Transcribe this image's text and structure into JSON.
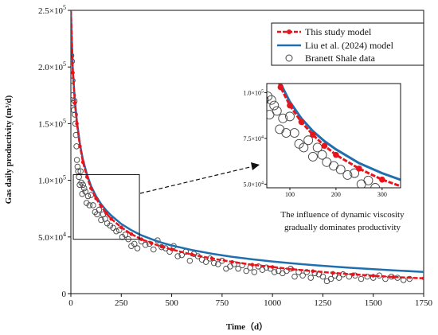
{
  "chart_data": {
    "type": "line",
    "xlabel": "Time（d）",
    "ylabel": "Gas daily productivity (m³/d)",
    "xlim": [
      0,
      1750
    ],
    "ylim": [
      0,
      250000
    ],
    "x_ticks": [
      "0",
      "250",
      "500",
      "750",
      "1000",
      "1250",
      "1500",
      "1750"
    ],
    "y_ticks": [
      {
        "mant": "0",
        "exp": ""
      },
      {
        "mant": "5.0×10",
        "exp": "4"
      },
      {
        "mant": "1.0×10",
        "exp": "5"
      },
      {
        "mant": "1.5×10",
        "exp": "5"
      },
      {
        "mant": "2.0×10",
        "exp": "5"
      },
      {
        "mant": "2.5×10",
        "exp": "5"
      }
    ],
    "legend_position": "top-right",
    "series": [
      {
        "name": "This study  model",
        "color": "#e8141b",
        "style": "dashed line with dots",
        "x": [
          0,
          10,
          20,
          30,
          45,
          60,
          80,
          100,
          125,
          150,
          175,
          200,
          250,
          300,
          350,
          400,
          450,
          500,
          600,
          700,
          800,
          900,
          1000,
          1100,
          1200,
          1300,
          1400,
          1500,
          1600,
          1750
        ],
        "y": [
          250000,
          195000,
          168000,
          150000,
          130000,
          116000,
          103000,
          93000,
          84000,
          77000,
          71000,
          66000,
          58500,
          52500,
          48000,
          44500,
          41500,
          39000,
          34500,
          31000,
          28000,
          25500,
          23500,
          21500,
          19800,
          18300,
          17000,
          15800,
          14700,
          13500
        ]
      },
      {
        "name": "Liu et al. (2024) model",
        "color": "#1f6fae",
        "style": "solid line",
        "x": [
          0,
          10,
          20,
          30,
          45,
          60,
          80,
          100,
          125,
          150,
          175,
          200,
          250,
          300,
          350,
          400,
          450,
          500,
          600,
          700,
          800,
          900,
          1000,
          1100,
          1200,
          1300,
          1400,
          1500,
          1600,
          1750
        ],
        "y": [
          250000,
          196000,
          170000,
          152000,
          132000,
          118000,
          105000,
          95000,
          86000,
          79000,
          73500,
          69000,
          61500,
          56000,
          51500,
          48000,
          45000,
          42500,
          38500,
          35200,
          32500,
          30300,
          28400,
          26700,
          25200,
          23900,
          22700,
          21600,
          20600,
          19200
        ]
      },
      {
        "name": "Branett Shale data",
        "color": "#444444",
        "style": "open circles",
        "x": [
          2,
          5,
          8,
          10,
          12,
          15,
          18,
          20,
          22,
          25,
          28,
          30,
          33,
          36,
          40,
          44,
          48,
          52,
          56,
          60,
          66,
          72,
          78,
          85,
          92,
          100,
          110,
          120,
          130,
          140,
          150,
          160,
          170,
          180,
          195,
          210,
          225,
          240,
          255,
          270,
          285,
          300,
          315,
          330,
          350,
          370,
          390,
          410,
          430,
          450,
          470,
          490,
          510,
          530,
          550,
          570,
          590,
          610,
          630,
          650,
          670,
          690,
          710,
          730,
          750,
          770,
          790,
          810,
          830,
          850,
          870,
          890,
          910,
          930,
          950,
          970,
          990,
          1010,
          1030,
          1050,
          1070,
          1090,
          1110,
          1130,
          1150,
          1170,
          1190,
          1210,
          1230,
          1250,
          1270,
          1290,
          1310,
          1330,
          1350,
          1380,
          1410,
          1440,
          1470,
          1500,
          1530,
          1560,
          1590,
          1620,
          1650,
          1680
        ],
        "y": [
          210000,
          205000,
          188000,
          175000,
          168000,
          162000,
          170000,
          158000,
          150000,
          140000,
          130000,
          118000,
          112000,
          108000,
          103000,
          96000,
          108000,
          98000,
          88000,
          96000,
          93000,
          90000,
          80000,
          86000,
          78000,
          87000,
          78000,
          72000,
          70000,
          74000,
          65000,
          70000,
          66000,
          62000,
          60000,
          58000,
          55000,
          56000,
          50000,
          52000,
          48000,
          42000,
          44000,
          40000,
          46000,
          43000,
          44000,
          39000,
          47000,
          41000,
          40000,
          37000,
          42000,
          33000,
          34000,
          37000,
          29000,
          35000,
          33000,
          30000,
          28000,
          31000,
          27000,
          26000,
          29000,
          22000,
          24000,
          26000,
          22000,
          25000,
          20000,
          23000,
          19000,
          24000,
          21000,
          23000,
          22000,
          19000,
          20000,
          18000,
          20000,
          22000,
          15000,
          19000,
          16000,
          19000,
          14000,
          18000,
          17000,
          15000,
          11000,
          13000,
          16000,
          14000,
          17000,
          15000,
          16000,
          13000,
          15000,
          14000,
          16000,
          13000,
          15000,
          14000,
          12000,
          13000
        ]
      }
    ],
    "inset": {
      "xlim": [
        50,
        340
      ],
      "ylim": [
        48000,
        105000
      ],
      "x_ticks": [
        "100",
        "200",
        "300"
      ],
      "y_ticks": [
        {
          "mant": "5.0×10",
          "exp": "4"
        },
        {
          "mant": "7.5×10",
          "exp": "4"
        },
        {
          "mant": "1.0×10",
          "exp": "5"
        }
      ],
      "source_box": {
        "x": [
          12,
          340
        ],
        "y": [
          48000,
          105000
        ]
      }
    },
    "annotation": [
      "The influence of dynamic viscosity",
      "gradually dominates productivity"
    ]
  }
}
